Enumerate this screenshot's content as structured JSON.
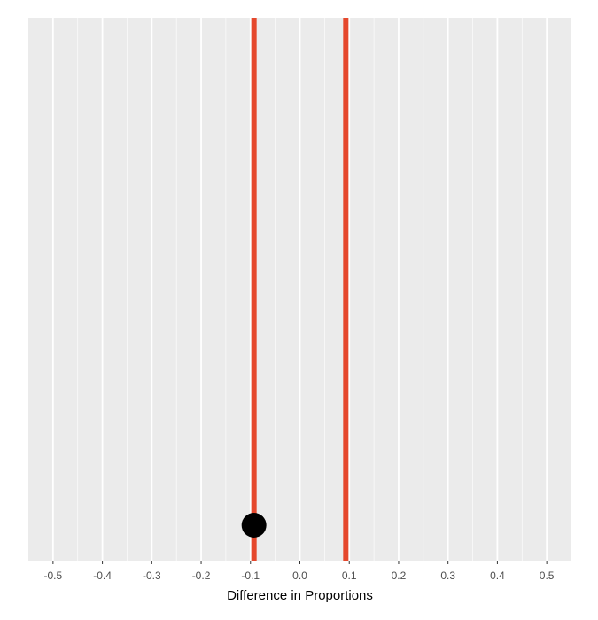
{
  "chart_data": {
    "type": "scatter",
    "title": "",
    "xlabel": "Difference in Proportions",
    "ylabel": "",
    "xlim": [
      -0.55,
      0.55
    ],
    "x_ticks": [
      -0.5,
      -0.4,
      -0.3,
      -0.2,
      -0.1,
      0.0,
      0.1,
      0.2,
      0.3,
      0.4,
      0.5
    ],
    "x_tick_labels": [
      "-0.5",
      "-0.4",
      "-0.3",
      "-0.2",
      "-0.1",
      "0.0",
      "0.1",
      "0.2",
      "0.3",
      "0.4",
      "0.5"
    ],
    "grid": true,
    "points": [
      {
        "x": -0.093
      }
    ],
    "vlines": [
      {
        "x": -0.093,
        "color": "#e5482d"
      },
      {
        "x": 0.093,
        "color": "#e5482d"
      }
    ],
    "colors": {
      "panel_background": "#ebebeb",
      "grid": "#ffffff",
      "point": "#000000",
      "line": "#e5482d",
      "tick_label": "#4d4d4d"
    }
  }
}
